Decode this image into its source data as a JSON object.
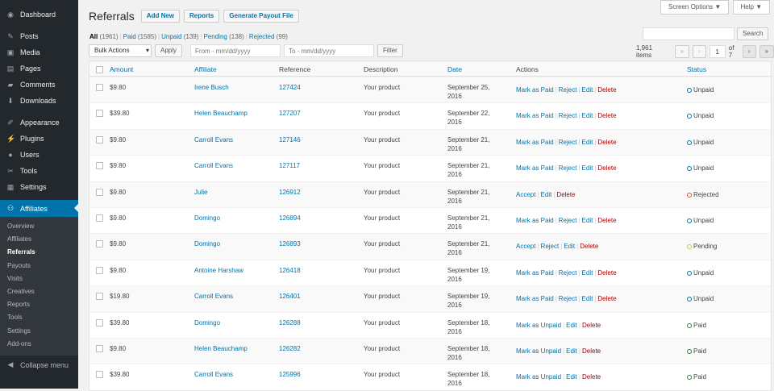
{
  "sidebar": {
    "items": [
      {
        "label": "Dashboard",
        "icon": "dashboard-icon"
      },
      {
        "label": "Posts",
        "icon": "pin-icon"
      },
      {
        "label": "Media",
        "icon": "media-icon"
      },
      {
        "label": "Pages",
        "icon": "pages-icon"
      },
      {
        "label": "Comments",
        "icon": "comment-icon"
      },
      {
        "label": "Downloads",
        "icon": "download-icon"
      },
      {
        "label": "Appearance",
        "icon": "brush-icon"
      },
      {
        "label": "Plugins",
        "icon": "plugin-icon"
      },
      {
        "label": "Users",
        "icon": "user-icon"
      },
      {
        "label": "Tools",
        "icon": "wrench-icon"
      },
      {
        "label": "Settings",
        "icon": "settings-icon"
      }
    ],
    "active": {
      "label": "Affiliates",
      "icon": "affiliates-icon"
    },
    "submenu": [
      "Overview",
      "Affiliates",
      "Referrals",
      "Payouts",
      "Visits",
      "Creatives",
      "Reports",
      "Tools",
      "Settings",
      "Add-ons"
    ],
    "current_sub": "Referrals",
    "collapse": "Collapse menu"
  },
  "header": {
    "title": "Referrals",
    "buttons": [
      "Add New",
      "Reports",
      "Generate Payout File"
    ],
    "screen_options": "Screen Options ▼",
    "help": "Help ▼"
  },
  "filters": [
    {
      "label": "All",
      "count": "(1961)"
    },
    {
      "label": "Paid",
      "count": "(1585)"
    },
    {
      "label": "Unpaid",
      "count": "(139)"
    },
    {
      "label": "Pending",
      "count": "(138)"
    },
    {
      "label": "Rejected",
      "count": "(99)"
    }
  ],
  "toolbar": {
    "bulk": "Bulk Actions",
    "apply": "Apply",
    "from_placeholder": "From - mm/dd/yyyy",
    "to_placeholder": "To - mm/dd/yyyy",
    "filter": "Filter",
    "search": "Search",
    "items": "1,961 items",
    "page": "1",
    "of": "of 7",
    "first": "«",
    "prev": "‹",
    "next": "›",
    "last": "»"
  },
  "columns": [
    "Amount",
    "Affiliate",
    "Reference",
    "Description",
    "Date",
    "Actions",
    "Status"
  ],
  "colors": {
    "unpaid": "#0073aa",
    "rejected": "#dd4b39",
    "pending": "#c9c55a",
    "paid": "#2e7d32"
  },
  "rows": [
    {
      "amount": "$9.80",
      "affiliate": "Irene Busch",
      "reference": "127424",
      "description": "Your product",
      "date1": "September 25,",
      "date2": "2016",
      "actions": [
        "Mark as Paid",
        "Reject",
        "Edit",
        "Delete"
      ],
      "status": "Unpaid",
      "s": "unpaid"
    },
    {
      "amount": "$39.80",
      "affiliate": "Helen Beauchamp",
      "reference": "127207",
      "description": "Your product",
      "date1": "September 22,",
      "date2": "2016",
      "actions": [
        "Mark as Paid",
        "Reject",
        "Edit",
        "Delete"
      ],
      "status": "Unpaid",
      "s": "unpaid"
    },
    {
      "amount": "$9.80",
      "affiliate": "Carroll Evans",
      "reference": "127146",
      "description": "Your product",
      "date1": "September 21,",
      "date2": "2016",
      "actions": [
        "Mark as Paid",
        "Reject",
        "Edit",
        "Delete"
      ],
      "status": "Unpaid",
      "s": "unpaid"
    },
    {
      "amount": "$9.80",
      "affiliate": "Carroll Evans",
      "reference": "127117",
      "description": "Your product",
      "date1": "September 21,",
      "date2": "2016",
      "actions": [
        "Mark as Paid",
        "Reject",
        "Edit",
        "Delete"
      ],
      "status": "Unpaid",
      "s": "unpaid"
    },
    {
      "amount": "$9.80",
      "affiliate": "Julie",
      "reference": "126912",
      "description": "Your product",
      "date1": "September 21,",
      "date2": "2016",
      "actions": [
        "Accept",
        "Edit",
        "Delete"
      ],
      "status": "Rejected",
      "s": "rejected"
    },
    {
      "amount": "$9.80",
      "affiliate": "Domingo",
      "reference": "126894",
      "description": "Your product",
      "date1": "September 21,",
      "date2": "2016",
      "actions": [
        "Mark as Paid",
        "Reject",
        "Edit",
        "Delete"
      ],
      "status": "Unpaid",
      "s": "unpaid"
    },
    {
      "amount": "$9.80",
      "affiliate": "Domingo",
      "reference": "126893",
      "description": "Your product",
      "date1": "September 21,",
      "date2": "2016",
      "actions": [
        "Accept",
        "Reject",
        "Edit",
        "Delete"
      ],
      "status": "Pending",
      "s": "pending"
    },
    {
      "amount": "$9.80",
      "affiliate": "Antoine Harshaw",
      "reference": "126418",
      "description": "Your product",
      "date1": "September 19,",
      "date2": "2016",
      "actions": [
        "Mark as Paid",
        "Reject",
        "Edit",
        "Delete"
      ],
      "status": "Unpaid",
      "s": "unpaid"
    },
    {
      "amount": "$19.80",
      "affiliate": "Carroll Evans",
      "reference": "126401",
      "description": "Your product",
      "date1": "September 19,",
      "date2": "2016",
      "actions": [
        "Mark as Paid",
        "Reject",
        "Edit",
        "Delete"
      ],
      "status": "Unpaid",
      "s": "unpaid"
    },
    {
      "amount": "$39.80",
      "affiliate": "Domingo",
      "reference": "126288",
      "description": "Your product",
      "date1": "September 18,",
      "date2": "2016",
      "actions": [
        "Mark as Unpaid",
        "Edit",
        "Delete"
      ],
      "status": "Paid",
      "s": "paid"
    },
    {
      "amount": "$9.80",
      "affiliate": "Helen Beauchamp",
      "reference": "126282",
      "description": "Your product",
      "date1": "September 18,",
      "date2": "2016",
      "actions": [
        "Mark as Unpaid",
        "Edit",
        "Delete"
      ],
      "status": "Paid",
      "s": "paid"
    },
    {
      "amount": "$39.80",
      "affiliate": "Carroll Evans",
      "reference": "125996",
      "description": "Your product",
      "date1": "September 18,",
      "date2": "2016",
      "actions": [
        "Mark as Unpaid",
        "Edit",
        "Delete"
      ],
      "status": "Paid",
      "s": "paid"
    }
  ]
}
